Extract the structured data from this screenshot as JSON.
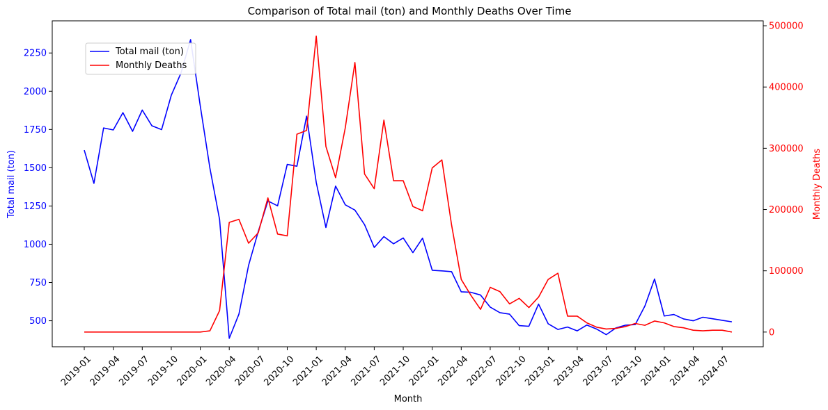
{
  "chart_data": {
    "type": "line",
    "title": "Comparison of Total mail (ton) and Monthly Deaths Over Time",
    "xlabel": "Month",
    "ylabel_left": "Total mail (ton)",
    "ylabel_right": "Monthly Deaths",
    "x": [
      "2019-01",
      "2019-02",
      "2019-03",
      "2019-04",
      "2019-05",
      "2019-06",
      "2019-07",
      "2019-08",
      "2019-09",
      "2019-10",
      "2019-11",
      "2019-12",
      "2020-01",
      "2020-02",
      "2020-03",
      "2020-04",
      "2020-05",
      "2020-06",
      "2020-07",
      "2020-08",
      "2020-09",
      "2020-10",
      "2020-11",
      "2020-12",
      "2021-01",
      "2021-02",
      "2021-03",
      "2021-04",
      "2021-05",
      "2021-06",
      "2021-07",
      "2021-08",
      "2021-09",
      "2021-10",
      "2021-11",
      "2021-12",
      "2022-01",
      "2022-02",
      "2022-03",
      "2022-04",
      "2022-05",
      "2022-06",
      "2022-07",
      "2022-08",
      "2022-09",
      "2022-10",
      "2022-11",
      "2022-12",
      "2023-01",
      "2023-02",
      "2023-03",
      "2023-04",
      "2023-05",
      "2023-06",
      "2023-07",
      "2023-08",
      "2023-09",
      "2023-10",
      "2023-11",
      "2023-12",
      "2024-01",
      "2024-02",
      "2024-03",
      "2024-04",
      "2024-05",
      "2024-06",
      "2024-07",
      "2024-08"
    ],
    "x_ticks": [
      "2019-01",
      "2019-04",
      "2019-07",
      "2019-10",
      "2020-01",
      "2020-04",
      "2020-07",
      "2020-10",
      "2021-01",
      "2021-04",
      "2021-07",
      "2021-10",
      "2022-01",
      "2022-04",
      "2022-07",
      "2022-10",
      "2023-01",
      "2023-04",
      "2023-07",
      "2023-10",
      "2024-01",
      "2024-04",
      "2024-07"
    ],
    "y_left_ticks": [
      500,
      750,
      1000,
      1250,
      1500,
      1750,
      2000,
      2250
    ],
    "y_left_range": [
      330,
      2460
    ],
    "y_right_ticks": [
      0,
      100000,
      200000,
      300000,
      400000,
      500000
    ],
    "y_right_range": [
      -24000,
      508000
    ],
    "legend_position": "upper-left",
    "grid": false,
    "series": [
      {
        "name": "Total mail (ton)",
        "axis": "left",
        "color": "#0000ff",
        "values": [
          1615,
          1398,
          1760,
          1747,
          1860,
          1738,
          1877,
          1774,
          1749,
          1973,
          2118,
          2337,
          1905,
          1497,
          1162,
          385,
          543,
          862,
          1083,
          1283,
          1251,
          1522,
          1510,
          1837,
          1404,
          1109,
          1380,
          1258,
          1223,
          1128,
          979,
          1050,
          1003,
          1041,
          945,
          1040,
          830,
          826,
          821,
          689,
          686,
          668,
          589,
          553,
          543,
          468,
          464,
          609,
          480,
          443,
          459,
          434,
          472,
          446,
          409,
          453,
          471,
          475,
          596,
          773,
          531,
          541,
          512,
          500,
          523,
          513,
          503,
          493
        ]
      },
      {
        "name": "Monthly Deaths",
        "axis": "right",
        "color": "#ff0000",
        "values": [
          0,
          0,
          0,
          0,
          0,
          0,
          0,
          0,
          0,
          0,
          0,
          0,
          0,
          2000,
          35000,
          179000,
          184000,
          145000,
          162000,
          219000,
          160000,
          157000,
          323000,
          329000,
          483000,
          303000,
          252000,
          333000,
          440000,
          258000,
          234000,
          346000,
          247000,
          247000,
          205000,
          198000,
          268000,
          281000,
          175000,
          86000,
          60000,
          37000,
          73000,
          66000,
          46000,
          55000,
          40000,
          57000,
          86000,
          96000,
          26000,
          26000,
          15000,
          8000,
          5000,
          6000,
          9000,
          14000,
          11000,
          18000,
          15000,
          9000,
          7000,
          3000,
          2000,
          3000,
          3000,
          0
        ]
      }
    ]
  }
}
